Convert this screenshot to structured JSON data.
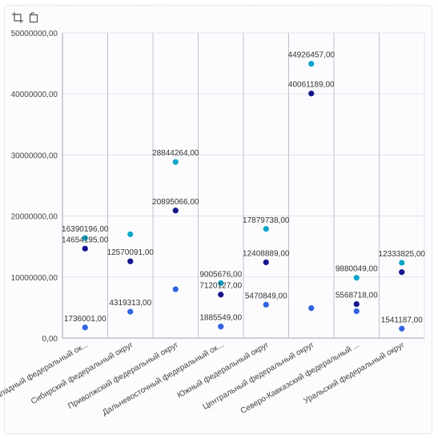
{
  "toolbar": {
    "icons": [
      "crop-icon",
      "restore-icon"
    ]
  },
  "chart_data": {
    "type": "scatter",
    "categories": [
      "Северо-Западный федеральный ок...",
      "Сибирский федеральный округ",
      "Приволжский федеральный округ",
      "Дальневосточный федеральный ок...",
      "Южный федеральный округ",
      "Центральный федеральный округ",
      "Северо-Кавказский федеральный ...",
      "Уральский федеральный округ"
    ],
    "y_ticks": [
      "0,00",
      "10000000,00",
      "20000000,00",
      "30000000,00",
      "40000000,00",
      "50000000,00"
    ],
    "ylim": [
      0,
      50000000
    ],
    "grid": true,
    "series": [
      {
        "color": "#0ea5c9",
        "values": [
          16390196,
          17000000,
          28844264,
          9005676,
          17879738,
          44926457,
          9880049,
          12333825
        ],
        "labels": [
          "16390196,00",
          "",
          "28844264,00",
          "9005676,00",
          "17879738,00",
          "44926457,00",
          "9880049,00",
          "12333825,00"
        ]
      },
      {
        "color": "#14148c",
        "values": [
          14654195,
          12570091,
          20895066,
          7120127,
          12408889,
          40061189,
          5568718,
          10800000
        ],
        "labels": [
          "14654195,00",
          "12570091,00",
          "20895066,00",
          "7120127,00",
          "12408889,00",
          "40061189,00",
          "5568718,00",
          ""
        ]
      },
      {
        "color": "#2f63e0",
        "values": [
          1736001,
          4319313,
          8000000,
          1885549,
          5470849,
          4900000,
          4400000,
          1541187
        ],
        "labels": [
          "1736001,00",
          "4319313,00",
          "",
          "1885549,00",
          "5470849,00",
          "",
          "",
          "1541187,00"
        ]
      }
    ]
  }
}
